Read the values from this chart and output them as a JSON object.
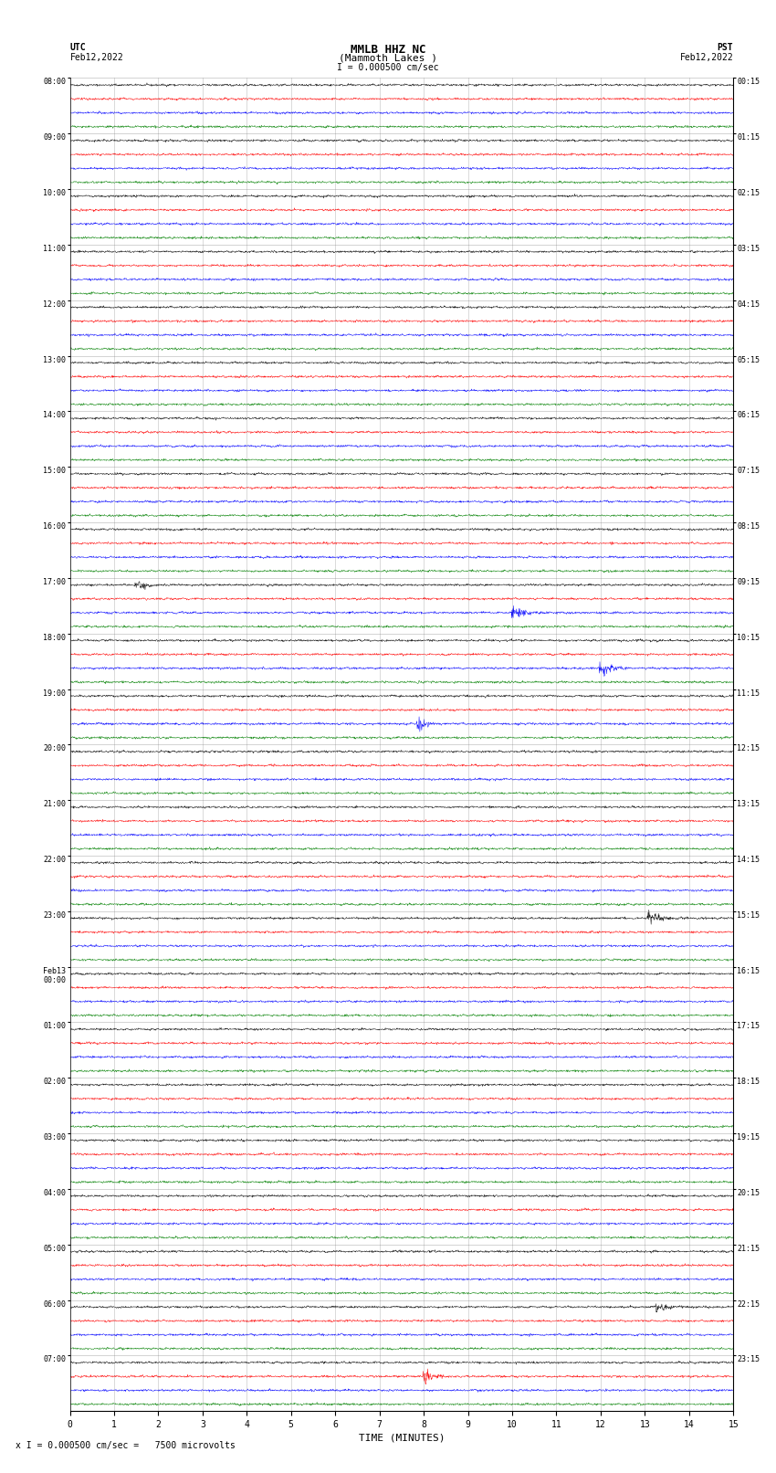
{
  "title_line1": "MMLB HHZ NC",
  "title_line2": "(Mammoth Lakes )",
  "title_line3": "I = 0.000500 cm/sec",
  "left_header_line1": "UTC",
  "left_header_line2": "Feb12,2022",
  "right_header_line1": "PST",
  "right_header_line2": "Feb12,2022",
  "xlabel": "TIME (MINUTES)",
  "footer": "x I = 0.000500 cm/sec =   7500 microvolts",
  "utc_labels": [
    "08:00",
    "09:00",
    "10:00",
    "11:00",
    "12:00",
    "13:00",
    "14:00",
    "15:00",
    "16:00",
    "17:00",
    "18:00",
    "19:00",
    "20:00",
    "21:00",
    "22:00",
    "23:00",
    "Feb13\n00:00",
    "01:00",
    "02:00",
    "03:00",
    "04:00",
    "05:00",
    "06:00",
    "07:00"
  ],
  "pst_labels": [
    "00:15",
    "01:15",
    "02:15",
    "03:15",
    "04:15",
    "05:15",
    "06:15",
    "07:15",
    "08:15",
    "09:15",
    "10:15",
    "11:15",
    "12:15",
    "13:15",
    "14:15",
    "15:15",
    "16:15",
    "17:15",
    "18:15",
    "19:15",
    "20:15",
    "21:15",
    "22:15",
    "23:15"
  ],
  "n_hours": 24,
  "traces_per_hour": 4,
  "n_cols_minutes": 15,
  "colors": [
    "black",
    "red",
    "blue",
    "green"
  ],
  "bg_color": "white",
  "noise_amplitude": 0.035,
  "seed": 42
}
